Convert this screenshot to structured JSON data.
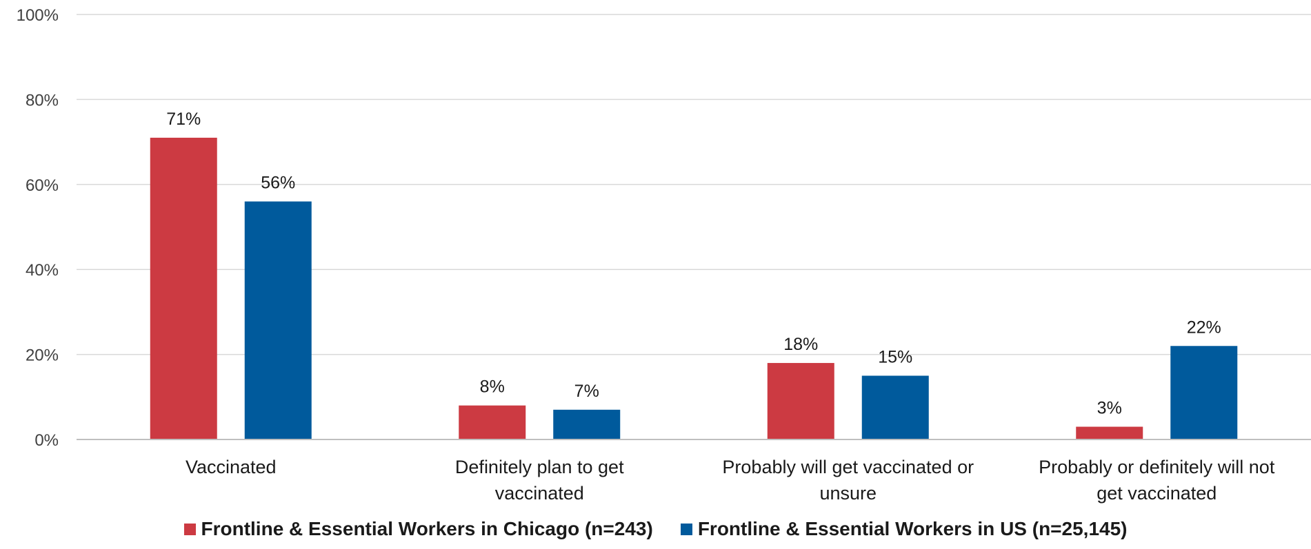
{
  "chart_data": {
    "type": "bar",
    "categories": [
      [
        "Vaccinated"
      ],
      [
        "Definitely plan to get",
        "vaccinated"
      ],
      [
        "Probably will get vaccinated or",
        "unsure"
      ],
      [
        "Probably or definitely will not",
        "get vaccinated"
      ]
    ],
    "series": [
      {
        "name": "Frontline & Essential Workers in Chicago (n=243)",
        "color": "#cc3a42",
        "values": [
          71,
          8,
          18,
          3
        ],
        "labels": [
          "71%",
          "8%",
          "18%",
          "3%"
        ]
      },
      {
        "name": "Frontline & Essential Workers in US (n=25,145)",
        "color": "#005a9c",
        "values": [
          56,
          7,
          15,
          22
        ],
        "labels": [
          "56%",
          "7%",
          "15%",
          "22%"
        ]
      }
    ],
    "yticks": [
      "0%",
      "20%",
      "40%",
      "60%",
      "80%",
      "100%"
    ],
    "ylim": [
      0,
      100
    ],
    "grid": true,
    "legend_position": "bottom"
  }
}
